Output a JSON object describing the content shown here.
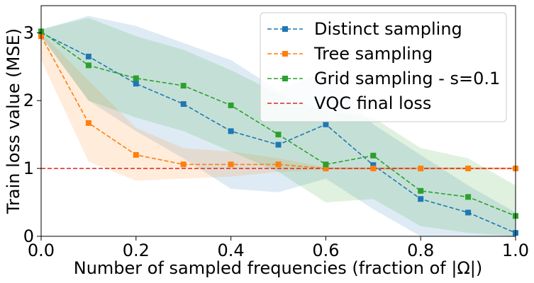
{
  "chart_data": {
    "type": "line",
    "title": "",
    "xlabel": "Number of sampled frequencies (fraction of |Ω|)",
    "ylabel": "Train loss value (MSE)",
    "xlim": [
      0.0,
      1.0
    ],
    "ylim": [
      0.0,
      3.4
    ],
    "xticks": [
      0.0,
      0.2,
      0.4,
      0.6,
      0.8,
      1.0
    ],
    "xtick_labels": [
      "0.0",
      "0.2",
      "0.4",
      "0.6",
      "0.8",
      "1.0"
    ],
    "yticks": [
      0,
      1,
      2,
      3
    ],
    "ytick_labels": [
      "0",
      "1",
      "2",
      "3"
    ],
    "grid": false,
    "legend_position": "top-right",
    "x": [
      0.0,
      0.1,
      0.2,
      0.3,
      0.4,
      0.5,
      0.6,
      0.7,
      0.8,
      0.9,
      1.0
    ],
    "series": [
      {
        "name": "Distinct sampling",
        "color": "#1f77b4",
        "marker": "square",
        "linestyle": "dashed",
        "values": [
          3.0,
          2.65,
          2.25,
          1.95,
          1.55,
          1.35,
          1.65,
          1.05,
          0.55,
          0.35,
          0.05
        ],
        "band_upper": [
          3.05,
          3.25,
          3.1,
          2.85,
          2.6,
          2.15,
          2.45,
          1.65,
          1.2,
          0.75,
          0.35
        ],
        "band_lower": [
          2.95,
          2.0,
          1.55,
          1.15,
          0.7,
          0.65,
          0.85,
          0.4,
          0.0,
          0.0,
          0.0
        ]
      },
      {
        "name": "Tree sampling",
        "color": "#ff7f0e",
        "marker": "square",
        "linestyle": "dashed",
        "values": [
          2.95,
          1.67,
          1.2,
          1.06,
          1.06,
          1.06,
          1.0,
          1.0,
          1.0,
          1.0,
          1.0
        ],
        "band_upper": [
          3.0,
          2.3,
          1.6,
          1.3,
          1.25,
          1.15,
          1.02,
          1.02,
          1.02,
          1.02,
          1.02
        ],
        "band_lower": [
          2.6,
          1.1,
          0.82,
          0.85,
          0.88,
          0.95,
          0.98,
          0.98,
          0.98,
          0.98,
          0.98
        ]
      },
      {
        "name": "Grid sampling - s=0.1",
        "color": "#2ca02c",
        "marker": "square",
        "linestyle": "dashed",
        "values": [
          3.02,
          2.52,
          2.33,
          2.22,
          1.93,
          1.5,
          1.06,
          1.19,
          0.67,
          0.58,
          0.3
        ],
        "band_upper": [
          3.05,
          3.22,
          2.95,
          2.75,
          2.45,
          2.1,
          1.85,
          1.75,
          1.3,
          1.15,
          0.75
        ],
        "band_lower": [
          2.95,
          2.0,
          1.75,
          1.55,
          1.25,
          0.95,
          0.5,
          0.55,
          0.15,
          0.05,
          0.0
        ]
      },
      {
        "name": "VQC final loss",
        "color": "#d62728",
        "marker": "none",
        "linestyle": "dashed",
        "constant": 1.0
      }
    ]
  }
}
